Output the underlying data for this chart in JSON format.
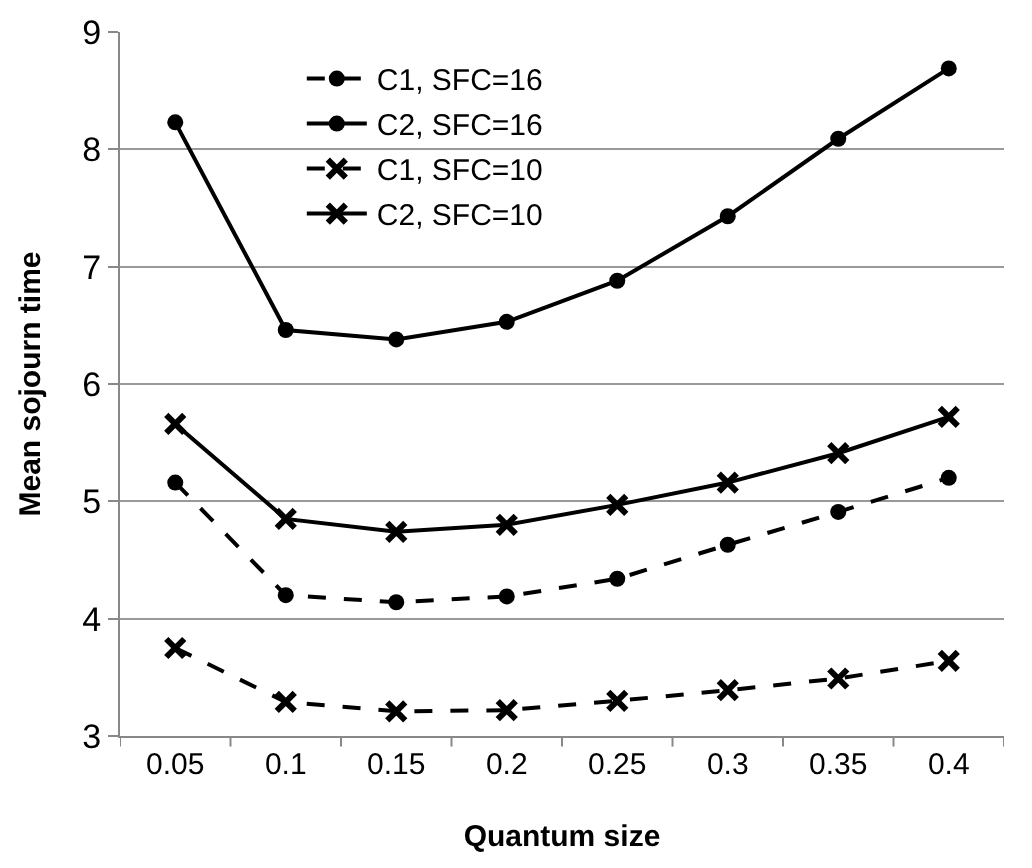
{
  "chart_data": {
    "type": "line",
    "xlabel": "Quantum size",
    "ylabel": "Mean sojourn time",
    "categories": [
      "0.05",
      "0.1",
      "0.15",
      "0.2",
      "0.25",
      "0.3",
      "0.35",
      "0.4"
    ],
    "ylim": [
      3,
      9
    ],
    "yticks": [
      3,
      4,
      5,
      6,
      7,
      8,
      9
    ],
    "grid": "y",
    "legend": "top",
    "series": [
      {
        "name": "C1, SFC=16",
        "color": "#000000",
        "marker": "circle",
        "line_style": "dashed",
        "values": [
          5.16,
          4.2,
          4.14,
          4.19,
          4.34,
          4.63,
          4.91,
          5.2
        ]
      },
      {
        "name": "C2, SFC=16",
        "color": "#000000",
        "marker": "circle",
        "line_style": "solid",
        "values": [
          8.23,
          6.46,
          6.38,
          6.53,
          6.88,
          7.43,
          8.09,
          8.69
        ]
      },
      {
        "name": "C1, SFC=10",
        "color": "#000000",
        "marker": "cross",
        "line_style": "dashed",
        "values": [
          3.75,
          3.29,
          3.21,
          3.22,
          3.3,
          3.39,
          3.49,
          3.64
        ]
      },
      {
        "name": "C2, SFC=10",
        "color": "#000000",
        "marker": "cross",
        "line_style": "solid",
        "values": [
          5.66,
          4.85,
          4.74,
          4.8,
          4.97,
          5.16,
          5.41,
          5.72
        ]
      }
    ]
  }
}
